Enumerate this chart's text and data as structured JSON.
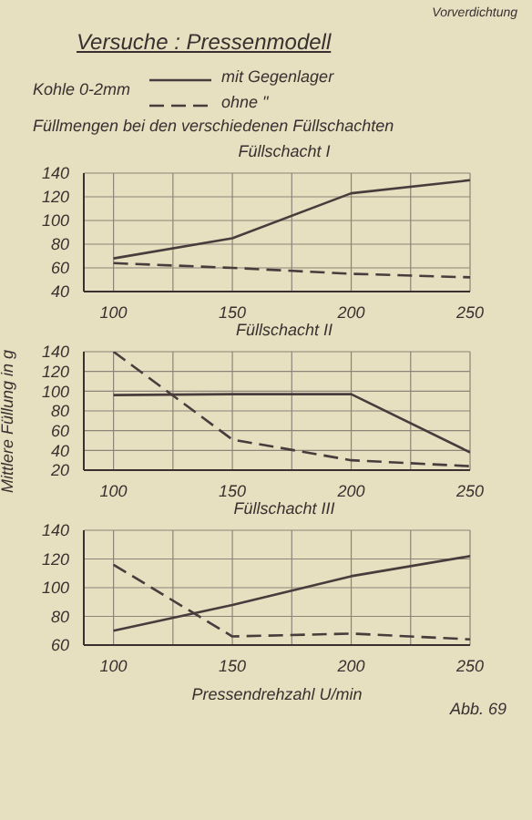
{
  "chart_data": [
    {
      "type": "other",
      "title": "Versuche : Pressenmodell",
      "annotations": [
        "Vorverdichtung"
      ]
    },
    {
      "type": "line",
      "title": "Füllschacht I",
      "subtitle": "Füllmengen bei den verschiedenen Füllschachten",
      "legend_title": "Kohle 0-2mm",
      "legend": "top",
      "grid": true,
      "marker": "none",
      "x": [
        100,
        150,
        200,
        250
      ],
      "xlim": [
        87.5,
        250
      ],
      "xticks": [
        100,
        {
          "value": 125,
          "label": null
        },
        150,
        {
          "value": 175,
          "label": null
        },
        200,
        {
          "value": 225,
          "label": null
        },
        250
      ],
      "ylim": [
        40,
        140
      ],
      "yticks": [
        40,
        60,
        80,
        100,
        120,
        140
      ],
      "series": [
        {
          "name": "mit Gegenlager",
          "color": "#4a3c3c",
          "line_style": "solid",
          "values": [
            68,
            85,
            123,
            134
          ]
        },
        {
          "name": "ohne \"",
          "color": "#4a3c3c",
          "line_style": "dashed",
          "values": [
            64,
            60,
            55,
            52
          ]
        }
      ]
    },
    {
      "type": "line",
      "title": "Füllschacht II",
      "ylabel": "Mittlere Füllung in g",
      "grid": true,
      "marker": "none",
      "x": [
        100,
        150,
        200,
        250
      ],
      "xlim": [
        87.5,
        250
      ],
      "xticks": [
        100,
        {
          "value": 125,
          "label": null
        },
        150,
        {
          "value": 175,
          "label": null
        },
        200,
        {
          "value": 225,
          "label": null
        },
        250
      ],
      "ylim": [
        20,
        140
      ],
      "yticks": [
        20,
        40,
        60,
        80,
        100,
        120,
        140
      ],
      "series": [
        {
          "color": "#4a3c3c",
          "line_style": "solid",
          "values": [
            96,
            97,
            97,
            38
          ]
        },
        {
          "color": "#4a3c3c",
          "line_style": "dashed",
          "values": [
            140,
            51,
            30,
            24
          ]
        }
      ]
    },
    {
      "type": "line",
      "title": "Füllschacht III",
      "xlabel": "Pressendrehzahl U/min",
      "annotations": [
        "Abb. 69"
      ],
      "grid": true,
      "marker": "none",
      "x": [
        100,
        150,
        200,
        250
      ],
      "xlim": [
        87.5,
        250
      ],
      "xticks": [
        100,
        {
          "value": 125,
          "label": null
        },
        150,
        {
          "value": 175,
          "label": null
        },
        200,
        {
          "value": 225,
          "label": null
        },
        250
      ],
      "ylim": [
        60,
        140
      ],
      "yticks": [
        60,
        80,
        100,
        120,
        140
      ],
      "series": [
        {
          "color": "#4a3c3c",
          "line_style": "solid",
          "values": [
            70,
            88,
            108,
            122
          ]
        },
        {
          "color": "#4a3c3c",
          "line_style": "dashed",
          "values": [
            116,
            66,
            68,
            64
          ]
        }
      ]
    }
  ]
}
